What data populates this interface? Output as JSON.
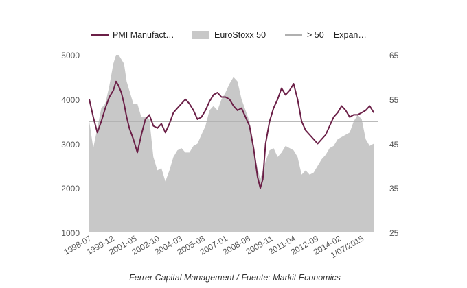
{
  "chart_data": {
    "type": "line",
    "caption": "Ferrer Capital Management / Fuente: Markit Economics",
    "legend": {
      "position": "top",
      "entries": [
        {
          "label": "PMI Manufact…",
          "kind": "line",
          "color": "#6b1f47"
        },
        {
          "label": "EuroStoxx 50",
          "kind": "area",
          "color": "#c8c8c8"
        },
        {
          "label": "> 50 = Expan…",
          "kind": "line",
          "color": "#b0b0b0"
        }
      ]
    },
    "x_labels": [
      {
        "label": "1998-07",
        "x": 1998.5
      },
      {
        "label": "1999-12",
        "x": 1999.92
      },
      {
        "label": "2001-05",
        "x": 2001.33
      },
      {
        "label": "2002-10",
        "x": 2002.75
      },
      {
        "label": "2004-03",
        "x": 2004.17
      },
      {
        "label": "2005-08",
        "x": 2005.58
      },
      {
        "label": "2007-01",
        "x": 2007.0
      },
      {
        "label": "2008-06",
        "x": 2008.42
      },
      {
        "label": "2009-11",
        "x": 2009.83
      },
      {
        "label": "2011-04",
        "x": 2011.25
      },
      {
        "label": "2012-09",
        "x": 2012.67
      },
      {
        "label": "2014-02",
        "x": 2014.08
      },
      {
        "label": "1/07/2015",
        "x": 2015.5
      }
    ],
    "xlim": [
      1998.5,
      2016.5
    ],
    "y_left": {
      "ticks": [
        "5000",
        "4000",
        "3000",
        "2000",
        "1000"
      ],
      "lim": [
        1000,
        5000
      ]
    },
    "y_right": {
      "ticks": [
        "65",
        "55",
        "45",
        "35",
        "25"
      ],
      "lim": [
        25,
        65
      ]
    },
    "threshold": 50,
    "series": [
      {
        "name": "EuroStoxx 50",
        "axis": "left",
        "kind": "area",
        "x": [
          1998.5,
          1998.75,
          1999.0,
          1999.25,
          1999.5,
          1999.75,
          2000.0,
          2000.17,
          2000.33,
          2000.5,
          2000.67,
          2000.83,
          2001.0,
          2001.25,
          2001.5,
          2001.75,
          2002.0,
          2002.25,
          2002.5,
          2002.75,
          2003.0,
          2003.25,
          2003.5,
          2003.75,
          2004.0,
          2004.25,
          2004.5,
          2004.75,
          2005.0,
          2005.25,
          2005.5,
          2005.75,
          2006.0,
          2006.25,
          2006.5,
          2006.75,
          2007.0,
          2007.25,
          2007.5,
          2007.75,
          2008.0,
          2008.25,
          2008.5,
          2008.75,
          2009.0,
          2009.17,
          2009.33,
          2009.5,
          2009.75,
          2010.0,
          2010.25,
          2010.5,
          2010.75,
          2011.0,
          2011.25,
          2011.5,
          2011.75,
          2012.0,
          2012.25,
          2012.5,
          2012.75,
          2013.0,
          2013.25,
          2013.5,
          2013.75,
          2014.0,
          2014.25,
          2014.5,
          2014.75,
          2015.0,
          2015.25,
          2015.5,
          2015.75,
          2016.0,
          2016.25
        ],
        "values": [
          3500,
          2900,
          3350,
          3800,
          3900,
          4300,
          4800,
          5000,
          5000,
          4900,
          4800,
          4400,
          4200,
          3900,
          3900,
          3600,
          3600,
          3550,
          2700,
          2400,
          2450,
          2150,
          2400,
          2700,
          2850,
          2900,
          2800,
          2800,
          2950,
          3000,
          3200,
          3400,
          3750,
          3850,
          3750,
          4000,
          4150,
          4350,
          4500,
          4400,
          4000,
          3750,
          3500,
          2850,
          2450,
          2200,
          2400,
          2600,
          2850,
          2900,
          2700,
          2800,
          2950,
          2900,
          2850,
          2700,
          2300,
          2400,
          2300,
          2350,
          2500,
          2650,
          2750,
          2900,
          2950,
          3100,
          3150,
          3200,
          3250,
          3500,
          3650,
          3550,
          3100,
          2950,
          3000
        ]
      },
      {
        "name": "PMI Manufact…",
        "axis": "right",
        "kind": "line",
        "x": [
          1998.5,
          1998.75,
          1999.0,
          1999.25,
          1999.5,
          1999.75,
          2000.0,
          2000.17,
          2000.33,
          2000.5,
          2000.67,
          2000.83,
          2001.0,
          2001.25,
          2001.5,
          2001.75,
          2002.0,
          2002.25,
          2002.5,
          2002.75,
          2003.0,
          2003.25,
          2003.5,
          2003.75,
          2004.0,
          2004.25,
          2004.5,
          2004.75,
          2005.0,
          2005.25,
          2005.5,
          2005.75,
          2006.0,
          2006.25,
          2006.5,
          2006.75,
          2007.0,
          2007.25,
          2007.5,
          2007.75,
          2008.0,
          2008.25,
          2008.5,
          2008.75,
          2009.0,
          2009.17,
          2009.33,
          2009.5,
          2009.75,
          2010.0,
          2010.25,
          2010.5,
          2010.75,
          2011.0,
          2011.25,
          2011.5,
          2011.75,
          2012.0,
          2012.25,
          2012.5,
          2012.75,
          2013.0,
          2013.25,
          2013.5,
          2013.75,
          2014.0,
          2014.25,
          2014.5,
          2014.75,
          2015.0,
          2015.25,
          2015.5,
          2015.75,
          2016.0,
          2016.25
        ],
        "values": [
          55,
          51,
          47.5,
          50,
          53,
          55.5,
          57,
          59,
          58,
          56.5,
          54,
          51,
          48.5,
          46,
          43,
          47,
          50.5,
          51.5,
          49,
          48.5,
          49.5,
          47.5,
          49.5,
          52,
          53,
          54,
          55,
          54,
          52.5,
          50.5,
          51,
          52.5,
          54.5,
          56,
          56.5,
          55.5,
          55.5,
          55,
          53.5,
          52.5,
          53,
          51,
          49,
          44,
          37.5,
          35,
          37,
          45,
          50,
          53,
          55,
          57.5,
          56,
          57,
          58.5,
          55,
          50,
          48,
          47,
          46,
          45,
          46,
          47,
          49,
          51,
          52,
          53.5,
          52.5,
          51,
          51.5,
          51.5,
          52,
          52.5,
          53.5,
          52
        ]
      }
    ]
  }
}
